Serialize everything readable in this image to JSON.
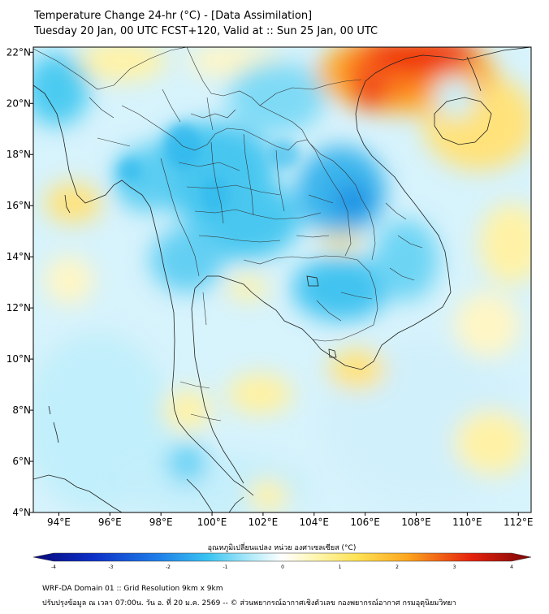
{
  "header": {
    "title": "Temperature Change 24-hr (°C) - [Data Assimilation]",
    "subtitle": "Tuesday 20 Jan, 00 UTC FCST+120, Valid at :: Sun 25 Jan, 00 UTC"
  },
  "map": {
    "lon_range": [
      93,
      112.5
    ],
    "lat_range": [
      4,
      22.2
    ],
    "lon_ticks": [
      {
        "value": 94,
        "label": "94°E"
      },
      {
        "value": 96,
        "label": "96°E"
      },
      {
        "value": 98,
        "label": "98°E"
      },
      {
        "value": 100,
        "label": "100°E"
      },
      {
        "value": 102,
        "label": "102°E"
      },
      {
        "value": 104,
        "label": "104°E"
      },
      {
        "value": 106,
        "label": "106°E"
      },
      {
        "value": 108,
        "label": "108°E"
      },
      {
        "value": 110,
        "label": "110°E"
      },
      {
        "value": 112,
        "label": "112°E"
      }
    ],
    "lat_ticks": [
      {
        "value": 22,
        "label": "22°N"
      },
      {
        "value": 20,
        "label": "20°N"
      },
      {
        "value": 18,
        "label": "18°N"
      },
      {
        "value": 16,
        "label": "16°N"
      },
      {
        "value": 14,
        "label": "14°N"
      },
      {
        "value": 12,
        "label": "12°N"
      },
      {
        "value": 10,
        "label": "10°N"
      },
      {
        "value": 8,
        "label": "8°N"
      },
      {
        "value": 6,
        "label": "6°N"
      },
      {
        "value": 4,
        "label": "4°N"
      }
    ],
    "colors": {
      "warm_strong": "#e8190e",
      "warm_mid": "#fb9a1c",
      "warm_light": "#ffe27a",
      "warm_pale": "#fff7c2",
      "cool_pale": "#cdf1fb",
      "cool_light": "#8fe0f6",
      "cool_mid": "#36c2ee",
      "cool_strong": "#1d8fe3",
      "land_border": "#222222"
    }
  },
  "colorbar": {
    "title": "อุณหภูมิเปลี่ยนแปลง หน่วย องศาเซลเซียส (°C)",
    "min": -4,
    "max": 4,
    "ticks": [
      "-4",
      "-3",
      "-2",
      "-1",
      "0",
      "1",
      "2",
      "3",
      "4"
    ],
    "tick_values": [
      -4,
      -3,
      -2,
      -1,
      0,
      1,
      2,
      3,
      4
    ]
  },
  "footer": {
    "line1": "WRF-DA Domain 01 :: Grid Resolution 9km x 9km",
    "line2": "ปรับปรุงข้อมูล ณ เวลา 07:00น. วัน อ. ที่ 20 ม.ค. 2569 -- © ส่วนพยากรณ์อากาศเชิงตัวเลข กองพยากรณ์อากาศ กรมอุตุนิยมวิทยา"
  }
}
